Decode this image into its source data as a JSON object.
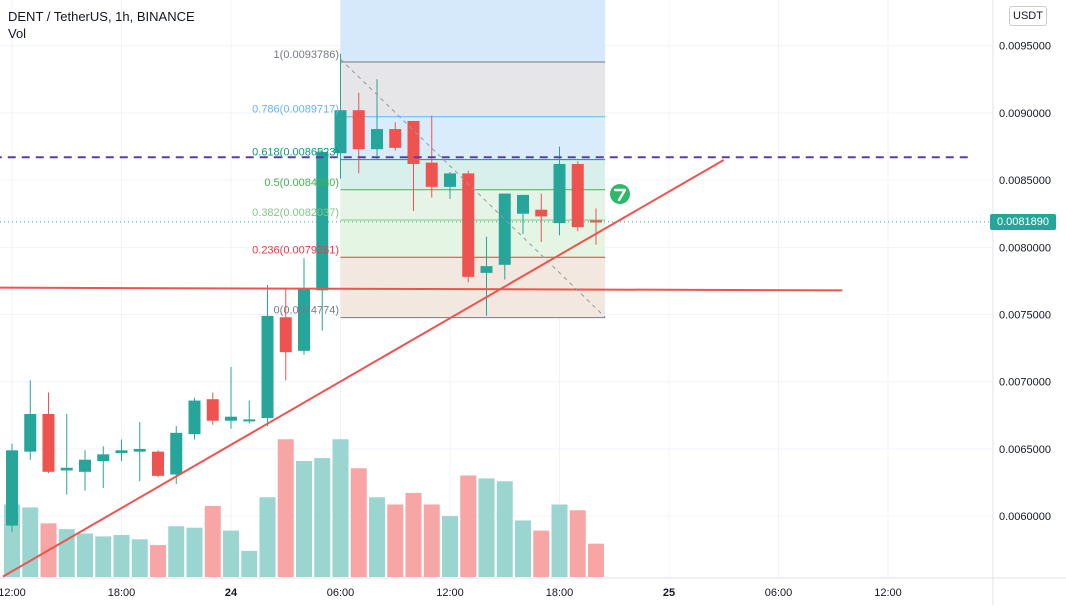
{
  "header": {
    "title": "DENT / TetherUS, 1h, BINANCE",
    "volume_label": "Vol",
    "currency_button": "USDT"
  },
  "last_price": {
    "label": "0.0081890",
    "value": 0.008189,
    "color": "#26a69a"
  },
  "colors": {
    "up": "#26a69a",
    "down": "#ef5350",
    "vol_up": "#9ad6cf",
    "vol_down": "#f7a6a5",
    "trendline": "#ef5350",
    "dashed": "#5b3ea4",
    "fib_level_0": "#787b86",
    "fib_level_0236": "#f23645",
    "fib_level_0382": "#81c784",
    "fib_level_05": "#4caf50",
    "fib_level_0618": "#089981",
    "fib_level_0786": "#64b5f6",
    "fib_level_1": "#787b86"
  },
  "chart_data": {
    "type": "candlestick",
    "title": "DENT / TetherUS, 1h, BINANCE",
    "y_ticks": [
      "0.0095000",
      "0.0090000",
      "0.0085000",
      "0.0080000",
      "0.0075000",
      "0.0070000",
      "0.0065000",
      "0.0060000"
    ],
    "y_tick_values": [
      0.0095,
      0.009,
      0.0085,
      0.008,
      0.0075,
      0.007,
      0.0065,
      0.006
    ],
    "ylim": [
      0.00554,
      0.00984
    ],
    "x_ticks": [
      {
        "label": "12:00",
        "bar": 0
      },
      {
        "label": "18:00",
        "bar": 6
      },
      {
        "label": "24",
        "bar": 12
      },
      {
        "label": "06:00",
        "bar": 18
      },
      {
        "label": "12:00",
        "bar": 24
      },
      {
        "label": "18:00",
        "bar": 30
      },
      {
        "label": "25",
        "bar": 36
      },
      {
        "label": "06:00",
        "bar": 42
      },
      {
        "label": "12:00",
        "bar": 48
      }
    ],
    "candles": [
      {
        "o": 0.00593,
        "h": 0.00654,
        "l": 0.00588,
        "c": 0.00649,
        "v": 0.5
      },
      {
        "o": 0.00648,
        "h": 0.00701,
        "l": 0.00642,
        "c": 0.00676,
        "v": 0.48
      },
      {
        "o": 0.00676,
        "h": 0.00692,
        "l": 0.00632,
        "c": 0.00633,
        "v": 0.37
      },
      {
        "o": 0.00634,
        "h": 0.00676,
        "l": 0.00616,
        "c": 0.00636,
        "v": 0.33
      },
      {
        "o": 0.00633,
        "h": 0.00649,
        "l": 0.00619,
        "c": 0.00642,
        "v": 0.3
      },
      {
        "o": 0.00641,
        "h": 0.00652,
        "l": 0.00621,
        "c": 0.00646,
        "v": 0.28
      },
      {
        "o": 0.00647,
        "h": 0.00657,
        "l": 0.00641,
        "c": 0.00649,
        "v": 0.29
      },
      {
        "o": 0.00648,
        "h": 0.0067,
        "l": 0.00626,
        "c": 0.0065,
        "v": 0.26
      },
      {
        "o": 0.00648,
        "h": 0.00649,
        "l": 0.00629,
        "c": 0.0063,
        "v": 0.22
      },
      {
        "o": 0.00631,
        "h": 0.00667,
        "l": 0.00624,
        "c": 0.00662,
        "v": 0.35
      },
      {
        "o": 0.00661,
        "h": 0.00688,
        "l": 0.00657,
        "c": 0.00686,
        "v": 0.34
      },
      {
        "o": 0.00687,
        "h": 0.00692,
        "l": 0.00668,
        "c": 0.00671,
        "v": 0.49
      },
      {
        "o": 0.00671,
        "h": 0.00711,
        "l": 0.00665,
        "c": 0.00674,
        "v": 0.32
      },
      {
        "o": 0.00671,
        "h": 0.00686,
        "l": 0.00669,
        "c": 0.00672,
        "v": 0.18
      },
      {
        "o": 0.00673,
        "h": 0.00772,
        "l": 0.00667,
        "c": 0.00749,
        "v": 0.55
      },
      {
        "o": 0.00748,
        "h": 0.0077,
        "l": 0.00701,
        "c": 0.00722,
        "v": 0.95
      },
      {
        "o": 0.00723,
        "h": 0.00792,
        "l": 0.0072,
        "c": 0.00769,
        "v": 0.8
      },
      {
        "o": 0.00768,
        "h": 0.00873,
        "l": 0.00738,
        "c": 0.00871,
        "v": 0.82
      },
      {
        "o": 0.0087,
        "h": 0.00944,
        "l": 0.00851,
        "c": 0.00902,
        "v": 0.95
      },
      {
        "o": 0.00902,
        "h": 0.00915,
        "l": 0.00855,
        "c": 0.00873,
        "v": 0.75
      },
      {
        "o": 0.00873,
        "h": 0.00925,
        "l": 0.00865,
        "c": 0.00888,
        "v": 0.55
      },
      {
        "o": 0.00888,
        "h": 0.00893,
        "l": 0.00872,
        "c": 0.00874,
        "v": 0.5
      },
      {
        "o": 0.00894,
        "h": 0.00894,
        "l": 0.00827,
        "c": 0.00862,
        "v": 0.58
      },
      {
        "o": 0.00863,
        "h": 0.00898,
        "l": 0.00837,
        "c": 0.00845,
        "v": 0.5
      },
      {
        "o": 0.00845,
        "h": 0.00856,
        "l": 0.00836,
        "c": 0.00855,
        "v": 0.42
      },
      {
        "o": 0.00855,
        "h": 0.00857,
        "l": 0.00774,
        "c": 0.00778,
        "v": 0.7
      },
      {
        "o": 0.00781,
        "h": 0.00808,
        "l": 0.00749,
        "c": 0.00786,
        "v": 0.68
      },
      {
        "o": 0.00787,
        "h": 0.00839,
        "l": 0.00776,
        "c": 0.0084,
        "v": 0.66
      },
      {
        "o": 0.00825,
        "h": 0.00839,
        "l": 0.0081,
        "c": 0.00839,
        "v": 0.39
      },
      {
        "o": 0.00828,
        "h": 0.0084,
        "l": 0.00804,
        "c": 0.00823,
        "v": 0.32
      },
      {
        "o": 0.00818,
        "h": 0.00875,
        "l": 0.00809,
        "c": 0.00862,
        "v": 0.5
      },
      {
        "o": 0.00862,
        "h": 0.00864,
        "l": 0.00812,
        "c": 0.00815,
        "v": 0.46
      },
      {
        "o": 0.0082,
        "h": 0.00829,
        "l": 0.00802,
        "c": 0.00819,
        "v": 0.23
      }
    ],
    "fibonacci": {
      "x_range": [
        18,
        32.5
      ],
      "levels": [
        {
          "ratio": "1",
          "price": "0.0093786",
          "value": 0.0093786,
          "label": "1(0.0093786)"
        },
        {
          "ratio": "0.786",
          "price": "0.0089717",
          "value": 0.0089717,
          "label": "0.786(0.0089717)"
        },
        {
          "ratio": "0.618",
          "price": "0.0086523",
          "value": 0.0086523,
          "label": "0.618(0.0086523)"
        },
        {
          "ratio": "0.5",
          "price": "0.0084280",
          "value": 0.008428,
          "label": "0.5(0.0084280)"
        },
        {
          "ratio": "0.382",
          "price": "0.0082037",
          "value": 0.0082037,
          "label": "0.382(0.0082037)"
        },
        {
          "ratio": "0.236",
          "price": "0.0079261",
          "value": 0.0079261,
          "label": "0.236(0.0079261)"
        },
        {
          "ratio": "0",
          "price": "0.0074774",
          "value": 0.0074774,
          "label": "0(0.0074774)"
        }
      ]
    },
    "lines": [
      {
        "name": "uptrend",
        "from": {
          "bar": -0.5,
          "price": 0.00555
        },
        "to": {
          "bar": 39,
          "price": 0.00865
        }
      },
      {
        "name": "horizontal-support",
        "from": {
          "bar": -1,
          "price": 0.0077
        },
        "to": {
          "bar": 45.5,
          "price": 0.00768
        }
      },
      {
        "name": "dashed-resistance",
        "from": {
          "bar": -1,
          "price": 0.00867
        },
        "to": {
          "bar": 52.5,
          "price": 0.00867
        }
      },
      {
        "name": "fib-diagonal",
        "from": {
          "bar": 18,
          "price": 0.0094
        },
        "to": {
          "bar": 32.5,
          "price": 0.00748
        }
      }
    ]
  }
}
